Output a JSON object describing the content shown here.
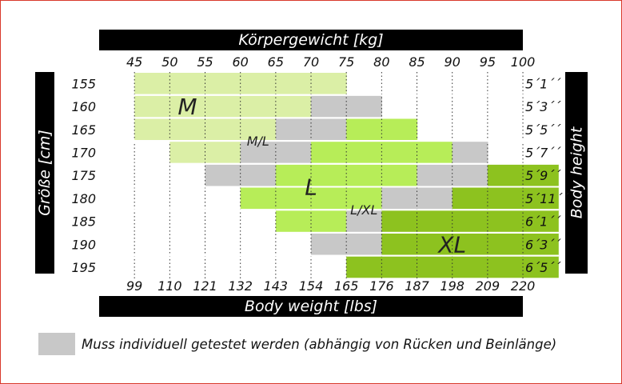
{
  "colors": {
    "M": "#dbefa6",
    "L": "#b7ed58",
    "XL": "#8dc21f",
    "test": "#c8c8c8",
    "bars": "#000000"
  },
  "chart_data": {
    "type": "heatmap",
    "title": "",
    "top_axis_title": "Körpergewicht [kg]",
    "bottom_axis_title": "Body weight [lbs]",
    "left_axis_title": "Größe [cm]",
    "right_axis_title": "Body height",
    "weight_kg": [
      "45",
      "50",
      "55",
      "60",
      "65",
      "70",
      "75",
      "80",
      "85",
      "90",
      "95",
      "100"
    ],
    "weight_lbs": [
      "99",
      "110",
      "121",
      "132",
      "143",
      "154",
      "165",
      "176",
      "187",
      "198",
      "209",
      "220"
    ],
    "height_cm": [
      "155",
      "160",
      "165",
      "170",
      "175",
      "180",
      "185",
      "190",
      "195"
    ],
    "height_ft": [
      "5´1´´",
      "5´3´´",
      "5´5´´",
      "5´7´´",
      "5´9´´",
      "5´11´´",
      "6´1´´",
      "6´3´´",
      "6´5´´"
    ],
    "categories": [
      "M",
      "L",
      "XL",
      "test"
    ],
    "grid": [
      [
        "",
        "M",
        "M",
        "M",
        "M",
        "M",
        "M",
        "",
        "",
        "",
        "",
        "",
        ""
      ],
      [
        "",
        "M",
        "M",
        "M",
        "M",
        "M",
        "test",
        "test",
        "",
        "",
        "",
        "",
        ""
      ],
      [
        "",
        "M",
        "M",
        "M",
        "M",
        "test",
        "test",
        "L",
        "L",
        "",
        "",
        "",
        ""
      ],
      [
        "",
        "",
        "M",
        "M",
        "test",
        "test",
        "L",
        "L",
        "L",
        "L",
        "test",
        "",
        ""
      ],
      [
        "",
        "",
        "",
        "test",
        "test",
        "L",
        "L",
        "L",
        "L",
        "test",
        "test",
        "XL",
        "XL"
      ],
      [
        "",
        "",
        "",
        "",
        "L",
        "L",
        "L",
        "L",
        "test",
        "test",
        "XL",
        "XL",
        "XL"
      ],
      [
        "",
        "",
        "",
        "",
        "",
        "L",
        "L",
        "test",
        "XL",
        "XL",
        "XL",
        "XL",
        "XL"
      ],
      [
        "",
        "",
        "",
        "",
        "",
        "",
        "test",
        "test",
        "XL",
        "XL",
        "XL",
        "XL",
        "XL"
      ],
      [
        "",
        "",
        "",
        "",
        "",
        "",
        "",
        "XL",
        "XL",
        "XL",
        "XL",
        "XL",
        "XL"
      ]
    ],
    "size_labels": [
      {
        "text": "M",
        "row": 1.5,
        "col": 2.5
      },
      {
        "text": "M/L",
        "row": 3,
        "col": 4.5
      },
      {
        "text": "L",
        "row": 5,
        "col": 6
      },
      {
        "text": "L/XL",
        "row": 6,
        "col": 7.5
      },
      {
        "text": "XL",
        "row": 7.5,
        "col": 10
      }
    ]
  },
  "legend": {
    "text": "Muss individuell getestet werden (abhängig von Rücken und Beinlänge)"
  }
}
